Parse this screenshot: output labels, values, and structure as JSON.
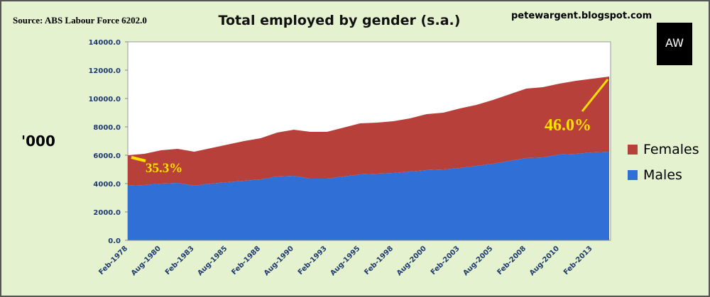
{
  "chart_data": {
    "type": "stacked_area",
    "title": "Total employed by gender (s.a.)",
    "source": "Source: ABS Labour Force 6202.0",
    "watermark": "petewargent.blogspot.com",
    "logo": "AW",
    "y_label": "'000",
    "annotations": [
      "35.3%",
      "46.0%"
    ],
    "categories": [
      "Feb-1978",
      null,
      "Aug-1980",
      null,
      "Feb-1983",
      null,
      "Aug-1985",
      null,
      "Feb-1988",
      null,
      "Aug-1990",
      null,
      "Feb-1993",
      null,
      "Aug-1995",
      null,
      "Feb-1998",
      null,
      "Aug-2000",
      null,
      "Feb-2003",
      null,
      "Aug-2005",
      null,
      "Feb-2008",
      null,
      "Aug-2010",
      null,
      "Feb-2013",
      null
    ],
    "series": [
      {
        "name": "Males",
        "color": "#2f6fd6",
        "values": [
          3850,
          3900,
          4000,
          4050,
          3850,
          4000,
          4100,
          4200,
          4300,
          4500,
          4550,
          4350,
          4350,
          4500,
          4650,
          4700,
          4750,
          4850,
          4950,
          5000,
          5100,
          5250,
          5400,
          5600,
          5800,
          5850,
          6050,
          6100,
          6200,
          6250
        ]
      },
      {
        "name": "Females",
        "color": "#b8403a",
        "values": [
          2150,
          2200,
          2350,
          2400,
          2400,
          2500,
          2650,
          2800,
          2900,
          3100,
          3250,
          3300,
          3300,
          3450,
          3600,
          3600,
          3650,
          3750,
          3950,
          4000,
          4200,
          4300,
          4500,
          4700,
          4900,
          4950,
          5000,
          5150,
          5200,
          5300
        ]
      }
    ],
    "ylim": [
      0,
      14000
    ],
    "yticks": [
      {
        "value": 0,
        "label": "0.0"
      },
      {
        "value": 2000,
        "label": "2000.0"
      },
      {
        "value": 4000,
        "label": "4000.0"
      },
      {
        "value": 6000,
        "label": "6000.0"
      },
      {
        "value": 8000,
        "label": "8000.0"
      },
      {
        "value": 10000,
        "label": "10000.0"
      },
      {
        "value": 12000,
        "label": "12000.0"
      },
      {
        "value": 14000,
        "label": "14000.0"
      }
    ],
    "legend": "right"
  }
}
